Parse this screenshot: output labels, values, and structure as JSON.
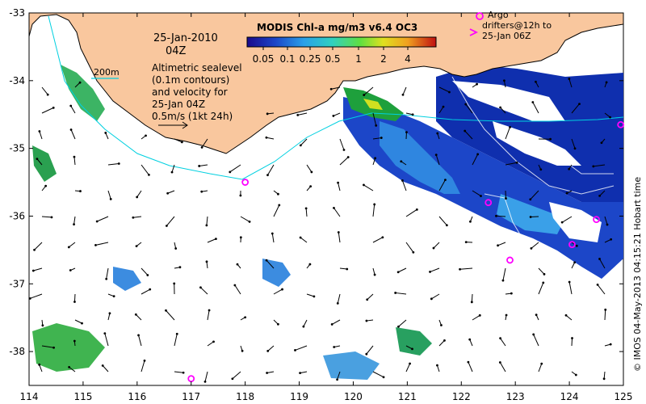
{
  "title": "MODIS Chl-a mg/m3 v6.4 OC3",
  "colorbar_ticks": [
    "0.05",
    "0.1",
    "0.25",
    "0.5",
    "1",
    "2",
    "4"
  ],
  "date_line1": "25-Jan-2010",
  "date_line2": "04Z",
  "isobath_label": "200m",
  "altimetry_lines": [
    "Altimetric sealevel",
    "(0.1m contours)",
    "and velocity for",
    "25-Jan 04Z",
    "0.5m/s (1kt 24h)"
  ],
  "argo_lines": [
    "Argo",
    "drifters@12h to",
    "25-Jan 06Z"
  ],
  "credit": "© IMOS 04-May-2013 04:15:21 Hobart time",
  "x_ticks": [
    "114",
    "115",
    "116",
    "117",
    "118",
    "119",
    "120",
    "121",
    "122",
    "123",
    "124",
    "125"
  ],
  "y_ticks": [
    "-33",
    "-34",
    "-35",
    "-36",
    "-37",
    "-38"
  ],
  "colors": {
    "land": "#f9c79e",
    "coast": "#000000",
    "isobath": "#00d0e0",
    "argo": "#ff00ff"
  },
  "map_extent": {
    "lon": [
      114,
      125
    ],
    "lat": [
      -38.5,
      -33
    ]
  },
  "argo_floats": [
    {
      "lon": 118.0,
      "lat": -35.5
    },
    {
      "lon": 117.0,
      "lat": -38.4
    },
    {
      "lon": 122.5,
      "lat": -35.8
    },
    {
      "lon": 122.9,
      "lat": -36.65
    },
    {
      "lon": 124.05,
      "lat": -36.42
    },
    {
      "lon": 124.5,
      "lat": -36.05
    },
    {
      "lon": 124.95,
      "lat": -34.65
    }
  ]
}
